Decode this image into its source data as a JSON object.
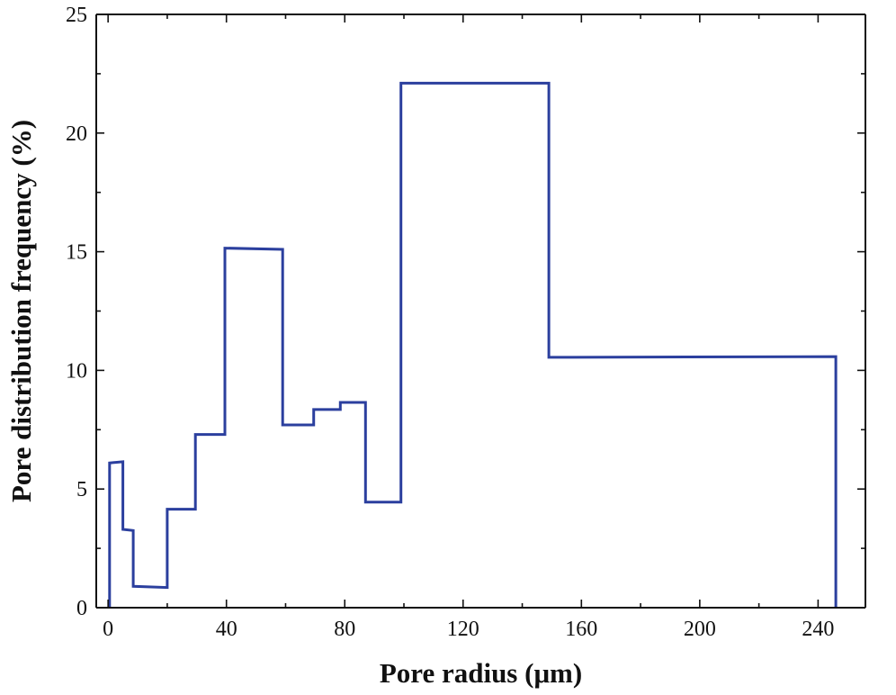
{
  "chart_data": {
    "type": "line",
    "title": "",
    "xlabel": "Pore radius (μm)",
    "ylabel": "Pore distribution frequency (%)",
    "xlim": [
      -4,
      256
    ],
    "ylim": [
      0,
      25
    ],
    "xticks": [
      0,
      40,
      80,
      120,
      160,
      200,
      240
    ],
    "yticks": [
      0,
      5,
      10,
      15,
      20,
      25
    ],
    "grid": false,
    "colors": {
      "series": "#2b3f9e",
      "axis": "#111111"
    },
    "series": [
      {
        "name": "Pore distribution frequency",
        "x": [
          0.5,
          0.5,
          5,
          5,
          8.5,
          8.5,
          20,
          20,
          29.5,
          29.5,
          39.5,
          39.5,
          59,
          59,
          69.5,
          69.5,
          78.5,
          78.5,
          87,
          87,
          99,
          99,
          149,
          149,
          246,
          246
        ],
        "y": [
          0,
          6.1,
          6.15,
          3.3,
          3.25,
          0.9,
          0.85,
          4.15,
          4.15,
          7.3,
          7.3,
          15.15,
          15.1,
          7.7,
          7.7,
          8.35,
          8.35,
          8.65,
          8.65,
          4.45,
          4.45,
          22.1,
          22.1,
          10.55,
          10.58,
          0
        ]
      }
    ]
  }
}
